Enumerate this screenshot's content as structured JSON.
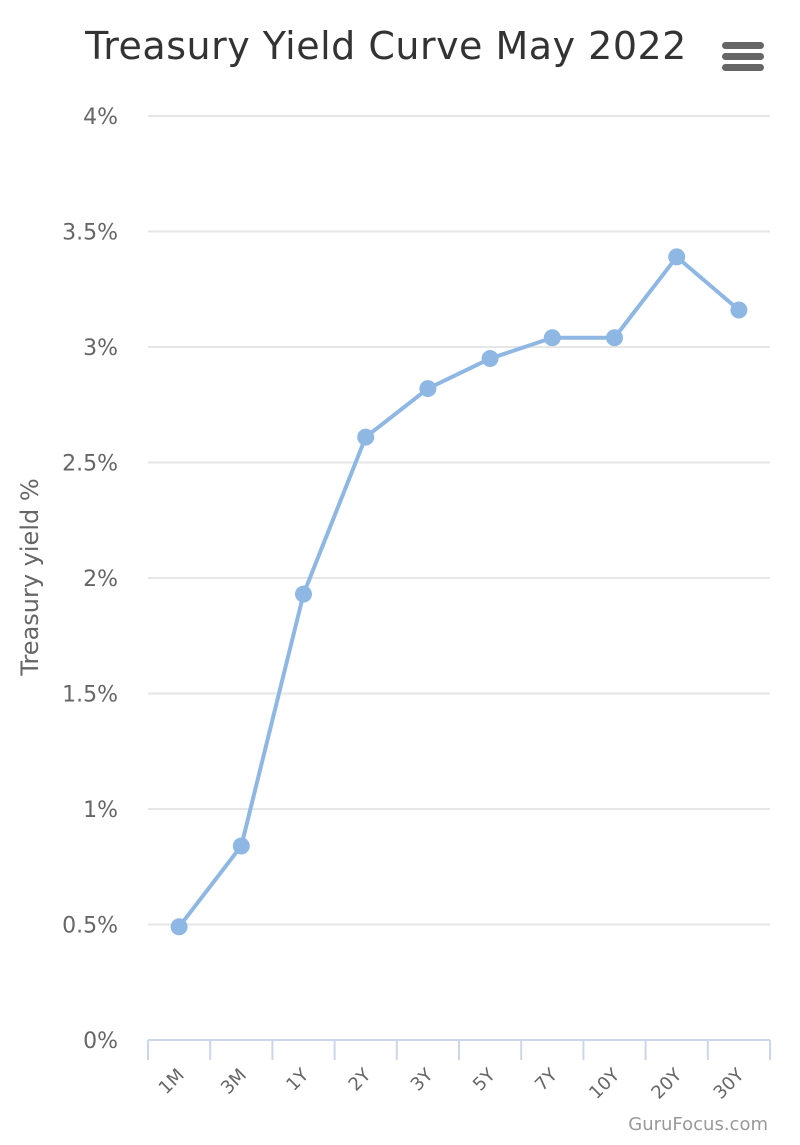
{
  "chart_data": {
    "type": "line",
    "title": "Treasury Yield Curve May 2022",
    "ylabel": "Treasury yield %",
    "xlabel": "",
    "categories": [
      "1M",
      "3M",
      "1Y",
      "2Y",
      "3Y",
      "5Y",
      "7Y",
      "10Y",
      "20Y",
      "30Y"
    ],
    "series": [
      {
        "values": [
          0.49,
          0.84,
          1.93,
          2.61,
          2.82,
          2.95,
          3.04,
          3.04,
          3.39,
          3.16
        ]
      }
    ],
    "ylim": [
      0,
      4
    ],
    "yticks": [
      0,
      0.5,
      1,
      1.5,
      2,
      2.5,
      3,
      3.5,
      4
    ],
    "ytick_labels": [
      "0%",
      "0.5%",
      "1%",
      "1.5%",
      "2%",
      "2.5%",
      "3%",
      "3.5%",
      "4%"
    ],
    "grid": true,
    "legend": "none"
  },
  "colors": {
    "series": "#8fb7e4",
    "grid": "#e6e6e6",
    "axis": "#ccd6eb"
  },
  "menu_icon": "hamburger-menu-icon",
  "credits": "GuruFocus.com"
}
